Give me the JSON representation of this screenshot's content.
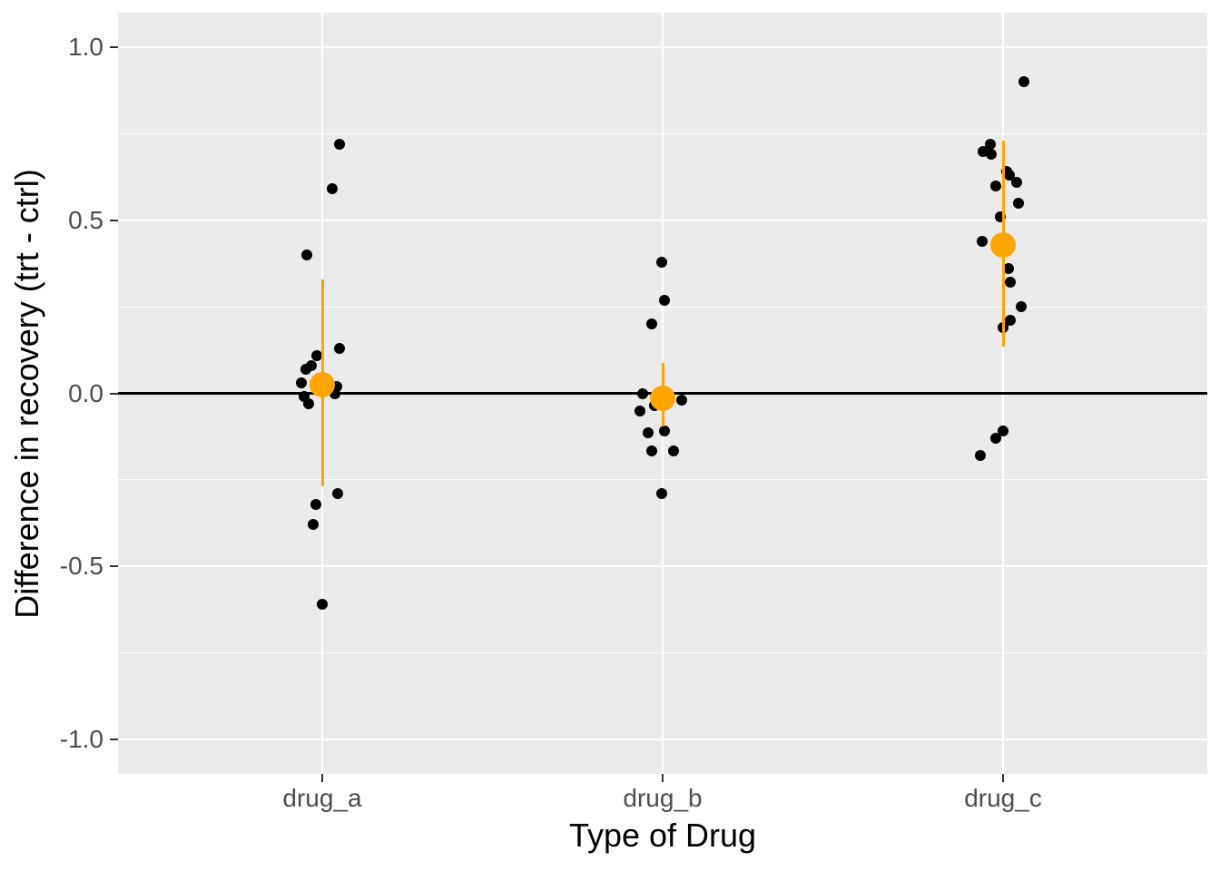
{
  "figure": {
    "colors": {
      "background": "#FFFFFF",
      "panel_background": "#EBEBEB",
      "gridline": "#FFFFFF",
      "jitter_point": "#000000",
      "mean_point": "#FFA500",
      "tick_label": "#4D4D4D",
      "axis_title": "#000000",
      "zero_line": "#000000",
      "tick_mark": "#333333"
    }
  },
  "chart_data": {
    "type": "scatter",
    "subtype": "jittered-dot-plot-with-mean-interval",
    "title": "",
    "xlabel": "Type of Drug",
    "ylabel": "Difference in recovery (trt - ctrl)",
    "categories": [
      "drug_a",
      "drug_b",
      "drug_c"
    ],
    "ylim": [
      -1.1,
      1.1
    ],
    "y_major_ticks": [
      1.0,
      0.5,
      0.0,
      -0.5,
      -1.0
    ],
    "y_tick_labels": [
      "1.0",
      "0.5",
      "0.0",
      "-0.5",
      "-1.0"
    ],
    "y_minor_ticks": [
      0.75,
      0.25,
      -0.25,
      -0.75
    ],
    "grid": "white major+minor horizontal lines, white vertical line at each category, on gray panel",
    "reference_line_y": 0,
    "legend": "none",
    "series": [
      {
        "name": "drug_a",
        "points": [
          {
            "y": 0.72,
            "jx": 19
          },
          {
            "y": 0.59,
            "jx": 11
          },
          {
            "y": 0.4,
            "jx": -17
          },
          {
            "y": 0.13,
            "jx": 19
          },
          {
            "y": 0.11,
            "jx": -6
          },
          {
            "y": 0.08,
            "jx": -12
          },
          {
            "y": 0.07,
            "jx": -18
          },
          {
            "y": 0.03,
            "jx": -23
          },
          {
            "y": 0.02,
            "jx": 16
          },
          {
            "y": 0.0,
            "jx": 14
          },
          {
            "y": -0.01,
            "jx": -20
          },
          {
            "y": -0.03,
            "jx": -15
          },
          {
            "y": -0.29,
            "jx": 17
          },
          {
            "y": -0.32,
            "jx": -7
          },
          {
            "y": -0.38,
            "jx": -10
          },
          {
            "y": -0.61,
            "jx": 0
          }
        ],
        "mean": 0.025,
        "interval_low": -0.27,
        "interval_high": 0.33
      },
      {
        "name": "drug_b",
        "points": [
          {
            "y": 0.38,
            "jx": -1
          },
          {
            "y": 0.27,
            "jx": 2
          },
          {
            "y": 0.2,
            "jx": -12
          },
          {
            "y": 0.0,
            "jx": -22
          },
          {
            "y": -0.02,
            "jx": 21
          },
          {
            "y": -0.035,
            "jx": -9
          },
          {
            "y": -0.05,
            "jx": -25
          },
          {
            "y": -0.11,
            "jx": 2
          },
          {
            "y": -0.114,
            "jx": -16
          },
          {
            "y": -0.167,
            "jx": -12
          },
          {
            "y": -0.167,
            "jx": 12
          },
          {
            "y": -0.29,
            "jx": -1
          }
        ],
        "mean": -0.015,
        "interval_low": -0.096,
        "interval_high": 0.089
      },
      {
        "name": "drug_c",
        "points": [
          {
            "y": 0.9,
            "jx": 23
          },
          {
            "y": 0.72,
            "jx": -14
          },
          {
            "y": 0.7,
            "jx": -22
          },
          {
            "y": 0.69,
            "jx": -13
          },
          {
            "y": 0.64,
            "jx": 4
          },
          {
            "y": 0.63,
            "jx": 7
          },
          {
            "y": 0.61,
            "jx": 15
          },
          {
            "y": 0.6,
            "jx": -8
          },
          {
            "y": 0.55,
            "jx": 17
          },
          {
            "y": 0.51,
            "jx": -3
          },
          {
            "y": 0.44,
            "jx": -23
          },
          {
            "y": 0.36,
            "jx": 6
          },
          {
            "y": 0.32,
            "jx": 8
          },
          {
            "y": 0.25,
            "jx": 20
          },
          {
            "y": 0.21,
            "jx": 8
          },
          {
            "y": 0.19,
            "jx": 0
          },
          {
            "y": -0.11,
            "jx": 0
          },
          {
            "y": -0.13,
            "jx": -8
          },
          {
            "y": -0.18,
            "jx": -25
          }
        ],
        "mean": 0.43,
        "interval_low": 0.134,
        "interval_high": 0.73
      }
    ]
  }
}
